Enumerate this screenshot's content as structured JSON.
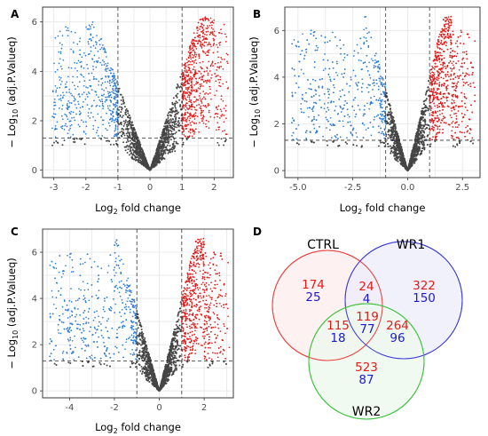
{
  "chart_data": [
    {
      "panel": "A",
      "type": "scatter",
      "xlabel": "Log",
      "xlabel_sub": "2",
      "xlabel_rest": " fold change",
      "ylabel_pre": "− Log",
      "ylabel_sub": "10",
      "ylabel_rest": " (adj.P.Valueq)",
      "xticks": [
        -3,
        -2,
        -1,
        0,
        1,
        2
      ],
      "yticks": [
        0,
        2,
        4,
        6
      ],
      "xlim": [
        -3.35,
        2.6
      ],
      "ylim": [
        -0.3,
        6.6
      ],
      "vlines": [
        -1,
        1
      ],
      "hline": 1.3,
      "gridlines": true,
      "colors": {
        "down": "#2b7bd8",
        "up": "#e61919",
        "ns": "#454545"
      }
    },
    {
      "panel": "B",
      "type": "scatter",
      "xlabel": "Log",
      "xlabel_sub": "2",
      "xlabel_rest": " fold change",
      "ylabel_pre": "− Log",
      "ylabel_sub": "10",
      "ylabel_rest": " (adj.P.Valueq)",
      "xticks": [
        -5.0,
        -2.5,
        0.0,
        2.5
      ],
      "xtick_labels": [
        "-5.0",
        "-2.5",
        "0.0",
        "2.5"
      ],
      "yticks": [
        0,
        2,
        4,
        6
      ],
      "xlim": [
        -5.6,
        3.3
      ],
      "ylim": [
        -0.3,
        7.0
      ],
      "vlines": [
        -1,
        1
      ],
      "hline": 1.3,
      "gridlines": true,
      "colors": {
        "down": "#2b7bd8",
        "up": "#e61919",
        "ns": "#454545"
      }
    },
    {
      "panel": "C",
      "type": "scatter",
      "xlabel": "Log",
      "xlabel_sub": "2",
      "xlabel_rest": " fold change",
      "ylabel_pre": "− Log",
      "ylabel_sub": "10",
      "ylabel_rest": " (adj.P.Valueq)",
      "xticks": [
        -4,
        -2,
        0,
        2
      ],
      "yticks": [
        0,
        2,
        4,
        6
      ],
      "xlim": [
        -5.2,
        3.3
      ],
      "ylim": [
        -0.3,
        7.0
      ],
      "vlines": [
        -1,
        1
      ],
      "hline": 1.3,
      "gridlines": true,
      "colors": {
        "down": "#2b7bd8",
        "up": "#e61919",
        "ns": "#454545"
      }
    }
  ],
  "venn": {
    "panel": "D",
    "type": "venn",
    "sets": [
      {
        "name": "CTRL",
        "color": "#e8423f",
        "fill": "#fdecec"
      },
      {
        "name": "WR1",
        "color": "#3d3dd6",
        "fill": "#ececfb"
      },
      {
        "name": "WR2",
        "color": "#3cc13c",
        "fill": "#ecf8ec"
      }
    ],
    "regions": [
      {
        "region": "CTRL only",
        "red": "174",
        "blue": "25"
      },
      {
        "region": "WR1 only",
        "red": "322",
        "blue": "150"
      },
      {
        "region": "WR2 only",
        "red": "523",
        "blue": "87"
      },
      {
        "region": "CTRL & WR1",
        "red": "24",
        "blue": "4"
      },
      {
        "region": "CTRL & WR2",
        "red": "115",
        "blue": "18"
      },
      {
        "region": "WR1 & WR2",
        "red": "264",
        "blue": "96"
      },
      {
        "region": "CTRL & WR1 & WR2",
        "red": "119",
        "blue": "77"
      }
    ],
    "colors": {
      "red": "#e61919",
      "blue": "#1a1ad6"
    }
  }
}
